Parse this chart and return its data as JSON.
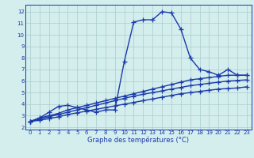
{
  "x": [
    0,
    1,
    2,
    3,
    4,
    5,
    6,
    7,
    8,
    9,
    10,
    11,
    12,
    13,
    14,
    15,
    16,
    17,
    18,
    19,
    20,
    21,
    22,
    23
  ],
  "temp_curve": [
    2.5,
    2.8,
    3.3,
    3.8,
    3.9,
    3.7,
    3.5,
    3.3,
    3.5,
    3.5,
    7.7,
    11.1,
    11.3,
    11.3,
    12.0,
    11.9,
    10.5,
    8.0,
    7.0,
    6.8,
    6.5,
    7.0,
    6.5,
    6.5
  ],
  "line_upper": [
    2.5,
    2.8,
    3.0,
    3.2,
    3.5,
    3.7,
    3.9,
    4.1,
    4.3,
    4.5,
    4.7,
    4.9,
    5.1,
    5.3,
    5.5,
    5.7,
    5.9,
    6.1,
    6.2,
    6.3,
    6.4,
    6.5,
    6.5,
    6.5
  ],
  "line_mid": [
    2.5,
    2.7,
    2.9,
    3.1,
    3.3,
    3.5,
    3.7,
    3.9,
    4.1,
    4.3,
    4.5,
    4.7,
    4.85,
    5.0,
    5.15,
    5.3,
    5.45,
    5.6,
    5.7,
    5.8,
    5.9,
    6.0,
    6.05,
    6.1
  ],
  "line_lower": [
    2.5,
    2.6,
    2.75,
    2.9,
    3.1,
    3.25,
    3.4,
    3.55,
    3.7,
    3.85,
    4.0,
    4.15,
    4.3,
    4.45,
    4.6,
    4.75,
    4.9,
    5.0,
    5.1,
    5.2,
    5.3,
    5.35,
    5.4,
    5.5
  ],
  "bg_color": "#d4eded",
  "line_color": "#1a3aab",
  "grid_color": "#aacccc",
  "xlabel": "Graphe des températures (°C)",
  "ylabel_ticks": [
    2,
    3,
    4,
    5,
    6,
    7,
    8,
    9,
    10,
    11,
    12
  ],
  "xlim": [
    -0.5,
    23.5
  ],
  "ylim": [
    1.8,
    12.6
  ],
  "marker": "+",
  "markersize": 4,
  "linewidth": 1.0,
  "figwidth": 3.2,
  "figheight": 2.0,
  "dpi": 100
}
